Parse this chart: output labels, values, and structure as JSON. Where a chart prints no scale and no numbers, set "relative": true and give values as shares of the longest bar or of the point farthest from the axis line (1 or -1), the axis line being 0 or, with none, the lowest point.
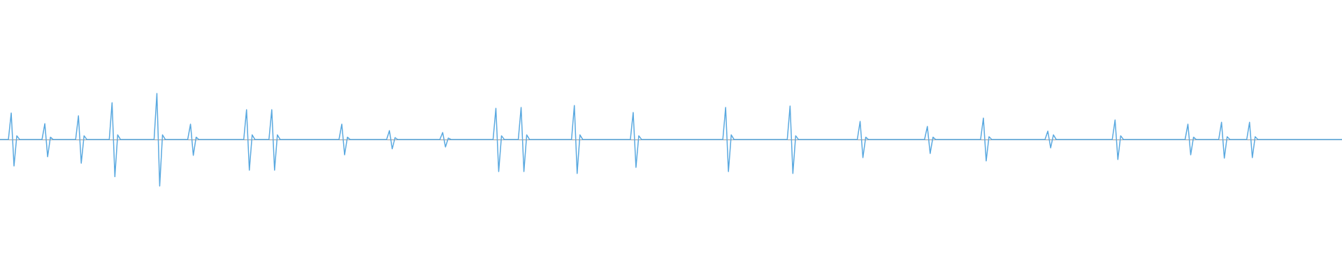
{
  "chart_data": {
    "type": "line",
    "relative": true,
    "color": "#5aa9e0",
    "categories": [
      null,
      null,
      null,
      null,
      null,
      null,
      null,
      null,
      null,
      null,
      null,
      null,
      null,
      null,
      null,
      null,
      null,
      null,
      null,
      null,
      null,
      null,
      null,
      null,
      null,
      null,
      null,
      null,
      null,
      null,
      null,
      null,
      null,
      null,
      null,
      null,
      null,
      null,
      null,
      null,
      null,
      null,
      null,
      null,
      null,
      null,
      null,
      null,
      null,
      null,
      null,
      null,
      null,
      null,
      null,
      null,
      null,
      null,
      null,
      null,
      null,
      null,
      null,
      null,
      null,
      null,
      null,
      null,
      null,
      null,
      null,
      null,
      null,
      null,
      null,
      null,
      null,
      null,
      null,
      null,
      null,
      null,
      null,
      null,
      null,
      null,
      null,
      null,
      null,
      null,
      null,
      null,
      null,
      null,
      null,
      null,
      null,
      null,
      null,
      null,
      null,
      null,
      null,
      null,
      null,
      null,
      null,
      null,
      null,
      null,
      null,
      null,
      null,
      null,
      null,
      null,
      null,
      null,
      null,
      null,
      null,
      null,
      null,
      null,
      null,
      null,
      null,
      null,
      null,
      null,
      null,
      null,
      null,
      null,
      null,
      null,
      null,
      null,
      null,
      null,
      null,
      null,
      null,
      null,
      null,
      null,
      null,
      null,
      null,
      null,
      null,
      null,
      null,
      null,
      null,
      null,
      null,
      null,
      null,
      null,
      null,
      null,
      null,
      null,
      null,
      null,
      null,
      null,
      null,
      null,
      null,
      null,
      null,
      null,
      null,
      null,
      null,
      null,
      null,
      null,
      null,
      null,
      null,
      null,
      null,
      null,
      null,
      null,
      null,
      null,
      null,
      null,
      null,
      null,
      null,
      null,
      null,
      null,
      null,
      null,
      null,
      null,
      null,
      null,
      null,
      null,
      null,
      null,
      null,
      null,
      null,
      null,
      null,
      null,
      null,
      null,
      null,
      null,
      null,
      null,
      null,
      null,
      null,
      null,
      null,
      null,
      null,
      null,
      null,
      null,
      null,
      null,
      null,
      null,
      null,
      null,
      null,
      null,
      null,
      null,
      null,
      null,
      null,
      null,
      null,
      null,
      null,
      null,
      null,
      null,
      null,
      null,
      null,
      null,
      null,
      null,
      null,
      null,
      null,
      null,
      null,
      null,
      null,
      null,
      null,
      null,
      null,
      null,
      null,
      null,
      null,
      null,
      null,
      null,
      null,
      null,
      null,
      null,
      null,
      null,
      null,
      null,
      null,
      null,
      null,
      null,
      null,
      null,
      null,
      null,
      null,
      null,
      null,
      null,
      null,
      null,
      null,
      null,
      null,
      null,
      null,
      null,
      null,
      null,
      null,
      null,
      null,
      null,
      null,
      null,
      null,
      null,
      null,
      null,
      null,
      null,
      null,
      null,
      null,
      null,
      null,
      null,
      null,
      null,
      null,
      null,
      null,
      null,
      null,
      null,
      null,
      null,
      null,
      null,
      null,
      null,
      null,
      null,
      null,
      null,
      null,
      null,
      null,
      null,
      null,
      null,
      null,
      null,
      null,
      null,
      null,
      null,
      null,
      null,
      null,
      null,
      null,
      null,
      null,
      null,
      null,
      null,
      null,
      null,
      null,
      null,
      null,
      null,
      null,
      null,
      null,
      null,
      null,
      null,
      null,
      null,
      null,
      null,
      null,
      null,
      null,
      null,
      null,
      null,
      null,
      null,
      null,
      null,
      null,
      null,
      null,
      null,
      null,
      null,
      null,
      null,
      null,
      null,
      null,
      null,
      null,
      null,
      null,
      null,
      null,
      null,
      null,
      null,
      null,
      null,
      null,
      null,
      null,
      null,
      null,
      null,
      null,
      null,
      null,
      null,
      null,
      null,
      null,
      null,
      null,
      null,
      null,
      null,
      null,
      null,
      null,
      null,
      null,
      null,
      null,
      null,
      null,
      null,
      null,
      null,
      null,
      null,
      null,
      null,
      null,
      null,
      null,
      null,
      null,
      null,
      null,
      null,
      null,
      null,
      null,
      null,
      null,
      null,
      null,
      null,
      null,
      null,
      null,
      null,
      null,
      null,
      null,
      null,
      null,
      null,
      null,
      null,
      null,
      null,
      null,
      null,
      null,
      null,
      null,
      null
    ],
    "values": [
      0,
      0,
      0,
      0,
      0.57,
      -0.57,
      0.08,
      0,
      0,
      0,
      0,
      0,
      0,
      0,
      0,
      0,
      0.34,
      -0.37,
      0.05,
      0,
      0,
      0,
      0,
      0,
      0,
      0,
      0,
      0,
      0.51,
      -0.51,
      0.08,
      0,
      0,
      0,
      0,
      0,
      0,
      0,
      0,
      0,
      0.79,
      -0.8,
      0.1,
      0,
      0,
      0,
      0,
      0,
      0,
      0,
      0,
      0,
      0,
      0,
      0,
      0,
      0.99,
      -1,
      0.1,
      0,
      0,
      0,
      0,
      0,
      0,
      0,
      0,
      0,
      0.33,
      -0.34,
      0.05,
      0,
      0,
      0,
      0,
      0,
      0,
      0,
      0,
      0,
      0,
      0,
      0,
      0,
      0,
      0,
      0,
      0,
      0.64,
      -0.66,
      0.1,
      0,
      0,
      0,
      0,
      0,
      0,
      0.64,
      -0.66,
      0.1,
      0,
      0,
      0,
      0,
      0,
      0,
      0,
      0,
      0,
      0,
      0,
      0,
      0,
      0,
      0,
      0,
      0,
      0,
      0,
      0,
      0,
      0,
      0.33,
      -0.33,
      0.05,
      0,
      0,
      0,
      0,
      0,
      0,
      0,
      0,
      0,
      0,
      0,
      0,
      0,
      0,
      0.19,
      -0.2,
      0.04,
      0,
      0,
      0,
      0,
      0,
      0,
      0,
      0,
      0,
      0,
      0,
      0,
      0,
      0,
      0,
      0,
      0.15,
      -0.16,
      0.03,
      0,
      0,
      0,
      0,
      0,
      0,
      0,
      0,
      0,
      0,
      0,
      0,
      0,
      0,
      0,
      0,
      0.67,
      -0.69,
      0.08,
      0,
      0,
      0,
      0,
      0,
      0,
      0.69,
      -0.69,
      0.1,
      0,
      0,
      0,
      0,
      0,
      0,
      0,
      0,
      0,
      0,
      0,
      0,
      0,
      0,
      0,
      0,
      0.73,
      -0.73,
      0.1,
      0,
      0,
      0,
      0,
      0,
      0,
      0,
      0,
      0,
      0,
      0,
      0,
      0,
      0,
      0,
      0,
      0,
      0,
      0.58,
      -0.6,
      0.08,
      0,
      0,
      0,
      0,
      0,
      0,
      0,
      0,
      0,
      0,
      0,
      0,
      0,
      0,
      0,
      0,
      0,
      0,
      0,
      0,
      0,
      0,
      0,
      0,
      0,
      0,
      0,
      0,
      0,
      0,
      0.69,
      -0.69,
      0.1,
      0,
      0,
      0,
      0,
      0,
      0,
      0,
      0,
      0,
      0,
      0,
      0,
      0,
      0,
      0,
      0,
      0,
      0,
      0,
      0,
      0.72,
      -0.73,
      0.08,
      0,
      0,
      0,
      0,
      0,
      0,
      0,
      0,
      0,
      0,
      0,
      0,
      0,
      0,
      0,
      0,
      0,
      0,
      0,
      0,
      0,
      0,
      0.39,
      -0.39,
      0.05,
      0,
      0,
      0,
      0,
      0,
      0,
      0,
      0,
      0,
      0,
      0,
      0,
      0,
      0,
      0,
      0,
      0,
      0,
      0,
      0,
      0,
      0.28,
      -0.3,
      0.05,
      0,
      0,
      0,
      0,
      0,
      0,
      0,
      0,
      0,
      0,
      0,
      0,
      0,
      0,
      0,
      0,
      0,
      0.46,
      -0.46,
      0.06,
      0,
      0,
      0,
      0,
      0,
      0,
      0,
      0,
      0,
      0,
      0,
      0,
      0,
      0,
      0,
      0,
      0,
      0,
      0,
      0,
      0.18,
      -0.18,
      0.1,
      0,
      0,
      0,
      0,
      0,
      0,
      0,
      0,
      0,
      0,
      0,
      0,
      0,
      0,
      0,
      0,
      0,
      0,
      0,
      0,
      0,
      0.42,
      -0.43,
      0.08,
      0,
      0,
      0,
      0,
      0,
      0,
      0,
      0,
      0,
      0,
      0,
      0,
      0,
      0,
      0,
      0,
      0,
      0,
      0,
      0,
      0,
      0,
      0,
      0.33,
      -0.33,
      0.05,
      0,
      0,
      0,
      0,
      0,
      0,
      0,
      0,
      0,
      0.37,
      -0.4,
      0.06,
      0,
      0,
      0,
      0,
      0,
      0,
      0,
      0.37,
      -0.39,
      0.06,
      0,
      0,
      0,
      0,
      0,
      0,
      0,
      0,
      0,
      0,
      0,
      0,
      0,
      0,
      0,
      0,
      0,
      0,
      0,
      0,
      0,
      0,
      0,
      0,
      0,
      0,
      0,
      0,
      0,
      0,
      0
    ]
  }
}
